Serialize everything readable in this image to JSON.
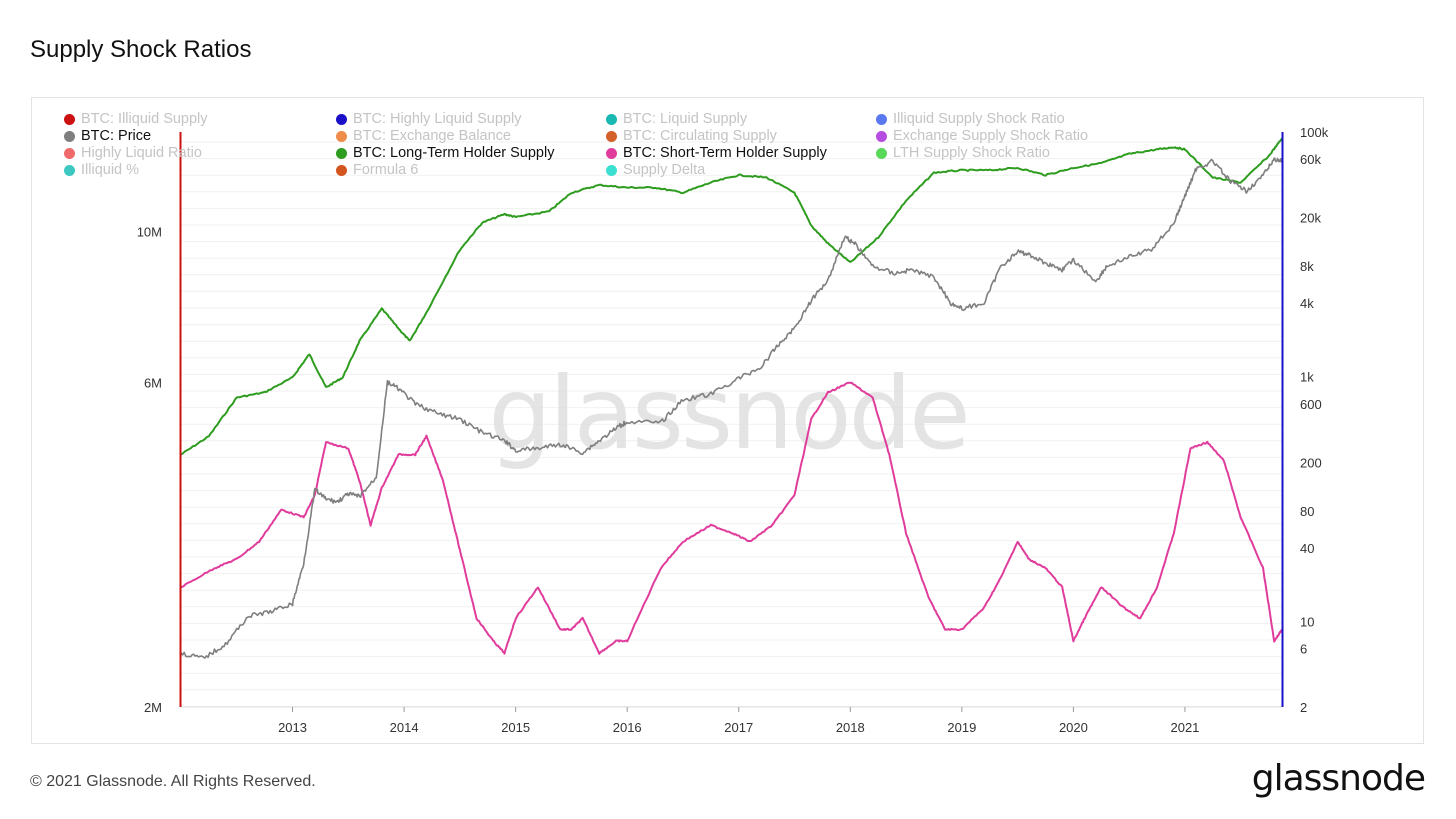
{
  "page": {
    "title": "Supply Shock Ratios",
    "footer": "© 2021 Glassnode. All Rights Reserved.",
    "brand": "glassnode",
    "watermark": "glassnode"
  },
  "legend": [
    {
      "label": "BTC: Illiquid Supply",
      "color": "#cc1111",
      "active": false
    },
    {
      "label": "BTC: Highly Liquid Supply",
      "color": "#1a10c8",
      "active": false
    },
    {
      "label": "BTC: Liquid Supply",
      "color": "#19b8b0",
      "active": false
    },
    {
      "label": "Illiquid Supply Shock Ratio",
      "color": "#5a78f0",
      "active": false
    },
    {
      "label": "BTC: Price",
      "color": "#7f7f7f",
      "active": true
    },
    {
      "label": "BTC: Exchange Balance",
      "color": "#f08c4a",
      "active": false
    },
    {
      "label": "BTC: Circulating Supply",
      "color": "#d4612a",
      "active": false
    },
    {
      "label": "Exchange Supply Shock Ratio",
      "color": "#b54ee0",
      "active": false
    },
    {
      "label": "Highly Liquid Ratio",
      "color": "#f06a6a",
      "active": false
    },
    {
      "label": "BTC: Long-Term Holder Supply",
      "color": "#2e9c1f",
      "active": true
    },
    {
      "label": "BTC: Short-Term Holder Supply",
      "color": "#e03c9c",
      "active": true
    },
    {
      "label": "LTH Supply Shock Ratio",
      "color": "#5ad85a",
      "active": false
    },
    {
      "label": "Illiquid %",
      "color": "#3cc8c0",
      "active": false
    },
    {
      "label": "Formula 6",
      "color": "#d4541e",
      "active": false
    },
    {
      "label": "Supply Delta",
      "color": "#3ce0d0",
      "active": false
    }
  ],
  "chart_data": {
    "type": "line",
    "title": "Supply Shock Ratios",
    "x_ticks": [
      "2013",
      "2014",
      "2015",
      "2016",
      "2017",
      "2018",
      "2019",
      "2020",
      "2021"
    ],
    "x_range": [
      2012.0,
      2021.87
    ],
    "left_axis": {
      "scale": "log",
      "range": [
        2000000,
        14000000
      ],
      "ticks": [
        "2M",
        "6M",
        "10M"
      ],
      "tick_values": [
        2000000,
        6000000,
        10000000
      ]
    },
    "right_axis": {
      "scale": "log",
      "range": [
        2,
        100000
      ],
      "ticks": [
        "2",
        "6",
        "10",
        "40",
        "80",
        "200",
        "600",
        "1k",
        "4k",
        "8k",
        "20k",
        "60k",
        "100k"
      ],
      "tick_values": [
        2,
        6,
        10,
        40,
        80,
        200,
        600,
        1000,
        4000,
        8000,
        20000,
        60000,
        100000
      ]
    },
    "grid": true,
    "legend_position": "top",
    "series": [
      {
        "name": "BTC: Long-Term Holder Supply",
        "axis": "left",
        "color": "#2e9c1f",
        "x": [
          2012.0,
          2012.25,
          2012.5,
          2012.75,
          2013.0,
          2013.15,
          2013.3,
          2013.45,
          2013.6,
          2013.8,
          2013.95,
          2014.05,
          2014.2,
          2014.5,
          2014.7,
          2014.9,
          2015.0,
          2015.3,
          2015.5,
          2015.75,
          2016.0,
          2016.25,
          2016.5,
          2016.75,
          2017.0,
          2017.25,
          2017.5,
          2017.65,
          2017.8,
          2018.0,
          2018.25,
          2018.5,
          2018.75,
          2019.0,
          2019.25,
          2019.5,
          2019.75,
          2020.0,
          2020.25,
          2020.5,
          2020.75,
          2020.9,
          2021.0,
          2021.25,
          2021.5,
          2021.75,
          2021.87
        ],
        "y": [
          4700000,
          5000000,
          5700000,
          5800000,
          6100000,
          6600000,
          5900000,
          6100000,
          6900000,
          7700000,
          7200000,
          6900000,
          7600000,
          9400000,
          10300000,
          10600000,
          10500000,
          10700000,
          11400000,
          11700000,
          11600000,
          11600000,
          11400000,
          11800000,
          12100000,
          12000000,
          11400000,
          10200000,
          9600000,
          9000000,
          9800000,
          11100000,
          12200000,
          12300000,
          12300000,
          12400000,
          12100000,
          12400000,
          12600000,
          13000000,
          13200000,
          13300000,
          13200000,
          12000000,
          11800000,
          12900000,
          13700000
        ]
      },
      {
        "name": "BTC: Short-Term Holder Supply",
        "axis": "left",
        "color": "#e03c9c",
        "x": [
          2012.0,
          2012.3,
          2012.5,
          2012.7,
          2012.9,
          2013.1,
          2013.2,
          2013.3,
          2013.5,
          2013.6,
          2013.7,
          2013.8,
          2013.95,
          2014.1,
          2014.2,
          2014.35,
          2014.5,
          2014.65,
          2014.8,
          2014.9,
          2015.0,
          2015.2,
          2015.4,
          2015.5,
          2015.6,
          2015.75,
          2015.9,
          2016.0,
          2016.3,
          2016.5,
          2016.75,
          2016.95,
          2017.1,
          2017.3,
          2017.5,
          2017.65,
          2017.8,
          2018.0,
          2018.2,
          2018.35,
          2018.5,
          2018.7,
          2018.85,
          2019.0,
          2019.2,
          2019.35,
          2019.5,
          2019.6,
          2019.75,
          2019.9,
          2020.0,
          2020.1,
          2020.25,
          2020.45,
          2020.6,
          2020.75,
          2020.9,
          2021.05,
          2021.2,
          2021.35,
          2021.5,
          2021.7,
          2021.8,
          2021.87
        ],
        "y": [
          3000000,
          3200000,
          3300000,
          3500000,
          3900000,
          3800000,
          4100000,
          4900000,
          4800000,
          4300000,
          3700000,
          4200000,
          4700000,
          4700000,
          5000000,
          4300000,
          3400000,
          2700000,
          2500000,
          2400000,
          2700000,
          3000000,
          2600000,
          2600000,
          2700000,
          2400000,
          2500000,
          2500000,
          3200000,
          3500000,
          3700000,
          3600000,
          3500000,
          3700000,
          4100000,
          5300000,
          5800000,
          6000000,
          5700000,
          4700000,
          3600000,
          2900000,
          2600000,
          2600000,
          2800000,
          3100000,
          3500000,
          3300000,
          3200000,
          3000000,
          2500000,
          2700000,
          3000000,
          2800000,
          2700000,
          3000000,
          3600000,
          4800000,
          4900000,
          4600000,
          3800000,
          3200000,
          2500000,
          2600000
        ]
      },
      {
        "name": "BTC: Price",
        "axis": "right",
        "color": "#7f7f7f",
        "x": [
          2012.0,
          2012.2,
          2012.4,
          2012.6,
          2012.8,
          2013.0,
          2013.1,
          2013.2,
          2013.3,
          2013.4,
          2013.5,
          2013.6,
          2013.75,
          2013.85,
          2013.95,
          2014.1,
          2014.3,
          2014.5,
          2014.7,
          2014.9,
          2015.0,
          2015.2,
          2015.4,
          2015.6,
          2015.75,
          2015.9,
          2016.0,
          2016.3,
          2016.5,
          2016.75,
          2017.0,
          2017.2,
          2017.35,
          2017.5,
          2017.65,
          2017.8,
          2017.95,
          2018.05,
          2018.2,
          2018.4,
          2018.55,
          2018.75,
          2018.9,
          2019.0,
          2019.2,
          2019.35,
          2019.5,
          2019.6,
          2019.75,
          2019.9,
          2020.0,
          2020.2,
          2020.3,
          2020.5,
          2020.7,
          2020.9,
          2021.0,
          2021.1,
          2021.25,
          2021.4,
          2021.55,
          2021.7,
          2021.8,
          2021.87
        ],
        "y": [
          5.5,
          5,
          6.5,
          11,
          12,
          14,
          30,
          120,
          100,
          95,
          110,
          105,
          150,
          900,
          800,
          600,
          500,
          450,
          350,
          300,
          250,
          260,
          280,
          240,
          300,
          380,
          430,
          420,
          650,
          720,
          970,
          1200,
          1800,
          2500,
          4200,
          6200,
          14000,
          12000,
          8000,
          7000,
          7500,
          6500,
          4000,
          3600,
          4000,
          8000,
          10500,
          10000,
          8500,
          7500,
          9000,
          6000,
          8000,
          9500,
          11000,
          18000,
          30000,
          50000,
          58000,
          40000,
          33000,
          44000,
          60000,
          58000
        ]
      }
    ]
  }
}
